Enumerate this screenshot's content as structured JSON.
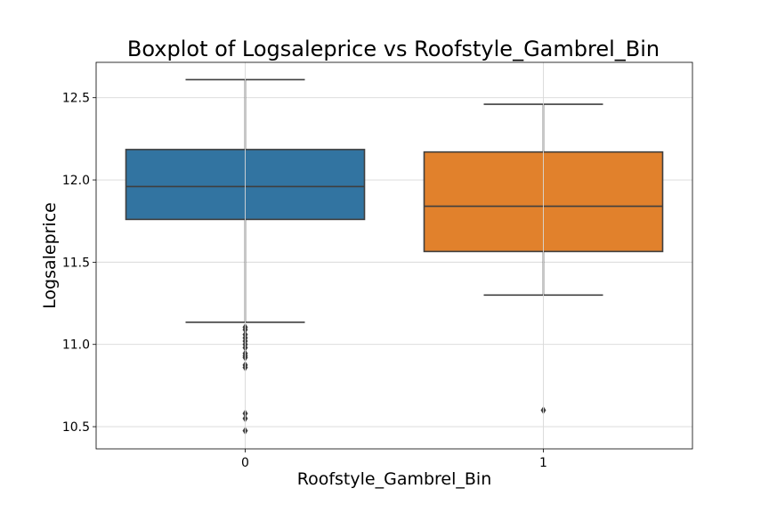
{
  "chart_data": {
    "type": "boxplot",
    "title": "Boxplot of Logsaleprice vs Roofstyle_Gambrel_Bin",
    "xlabel": "Roofstyle_Gambrel_Bin",
    "ylabel": "Logsaleprice",
    "ylim": [
      10.365,
      12.715
    ],
    "yticks": [
      "10.5",
      "11.0",
      "11.5",
      "12.0",
      "12.5"
    ],
    "grid": true,
    "categories": [
      "0",
      "1"
    ],
    "boxes": [
      {
        "category": "0",
        "color": "#3274a1",
        "whisker_low": 11.135,
        "q1": 11.76,
        "median": 11.96,
        "q3": 12.185,
        "whisker_high": 12.61,
        "outliers": [
          11.105,
          11.09,
          11.06,
          11.04,
          11.02,
          11.0,
          10.98,
          10.945,
          10.93,
          10.92,
          10.875,
          10.86,
          10.58,
          10.55,
          10.475
        ]
      },
      {
        "category": "1",
        "color": "#e1812c",
        "whisker_low": 11.3,
        "q1": 11.565,
        "median": 11.84,
        "q3": 12.17,
        "whisker_high": 12.46,
        "outliers": [
          10.6
        ]
      }
    ]
  }
}
